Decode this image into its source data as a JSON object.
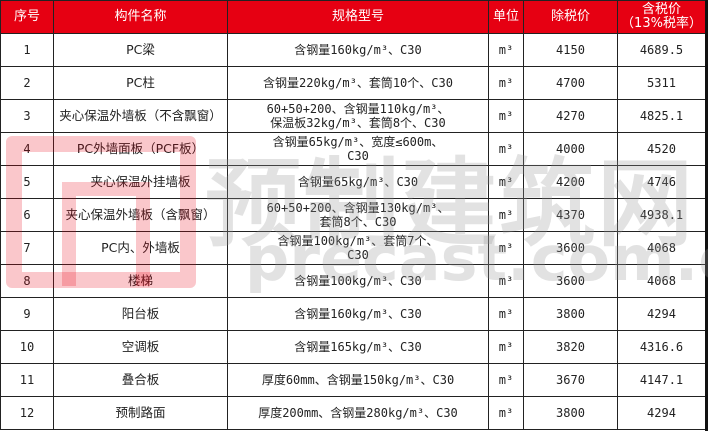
{
  "colors": {
    "header_bg": "#e60012",
    "header_text": "#ffffff"
  },
  "headers": [
    "序号",
    "构件名称",
    "规格型号",
    "单位",
    "除税价",
    "含税价",
    "（13%税率）"
  ],
  "rows": [
    {
      "no": "1",
      "name": "PC梁",
      "spec1": "含钢量160kg/m³、C30",
      "spec2": "",
      "unit": "m³",
      "price": "4150",
      "tax_price": "4689.5"
    },
    {
      "no": "2",
      "name": "PC柱",
      "spec1": "含钢量220kg/m³、套筒10个、C30",
      "spec2": "",
      "unit": "m³",
      "price": "4700",
      "tax_price": "5311"
    },
    {
      "no": "3",
      "name": "夹心保温外墙板（不含飘窗）",
      "spec1": "60+50+200、含钢量110kg/m³、",
      "spec2": "保温板32kg/m³、套筒8个、C30",
      "unit": "m³",
      "price": "4270",
      "tax_price": "4825.1"
    },
    {
      "no": "4",
      "name": "PC外墙面板（PCF板）",
      "spec1": "含钢量65kg/m³、宽度≤600m、",
      "spec2": "C30",
      "unit": "m³",
      "price": "4000",
      "tax_price": "4520"
    },
    {
      "no": "5",
      "name": "夹心保温外挂墙板",
      "spec1": "含钢量65kg/m³、C30",
      "spec2": "",
      "unit": "m³",
      "price": "4200",
      "tax_price": "4746"
    },
    {
      "no": "6",
      "name": "夹心保温外墙板（含飘窗）",
      "spec1": "60+50+200、含钢量130kg/m³、",
      "spec2": "套筒8个、C30",
      "unit": "m³",
      "price": "4370",
      "tax_price": "4938.1"
    },
    {
      "no": "7",
      "name": "PC内、外墙板",
      "spec1": "含钢量100kg/m³、套筒7个、",
      "spec2": "C30",
      "unit": "m³",
      "price": "3600",
      "tax_price": "4068"
    },
    {
      "no": "8",
      "name": "楼梯",
      "spec1": "含钢量100kg/m³、C30",
      "spec2": "",
      "unit": "m³",
      "price": "3600",
      "tax_price": "4068"
    },
    {
      "no": "9",
      "name": "阳台板",
      "spec1": "含钢量160kg/m³、C30",
      "spec2": "",
      "unit": "m³",
      "price": "3800",
      "tax_price": "4294"
    },
    {
      "no": "10",
      "name": "空调板",
      "spec1": "含钢量165kg/m³、C30",
      "spec2": "",
      "unit": "m³",
      "price": "3820",
      "tax_price": "4316.6"
    },
    {
      "no": "11",
      "name": "叠合板",
      "spec1": "厚度60mm、含钢量150kg/m³、C30",
      "spec2": "",
      "unit": "m³",
      "price": "3670",
      "tax_price": "4147.1"
    },
    {
      "no": "12",
      "name": "预制路面",
      "spec1": "厚度200mm、含钢量280kg/m³、C30",
      "spec2": "",
      "unit": "m³",
      "price": "3800",
      "tax_price": "4294"
    }
  ],
  "watermark": {
    "cn": "预制建筑网",
    "en": "precast.com.cn"
  }
}
